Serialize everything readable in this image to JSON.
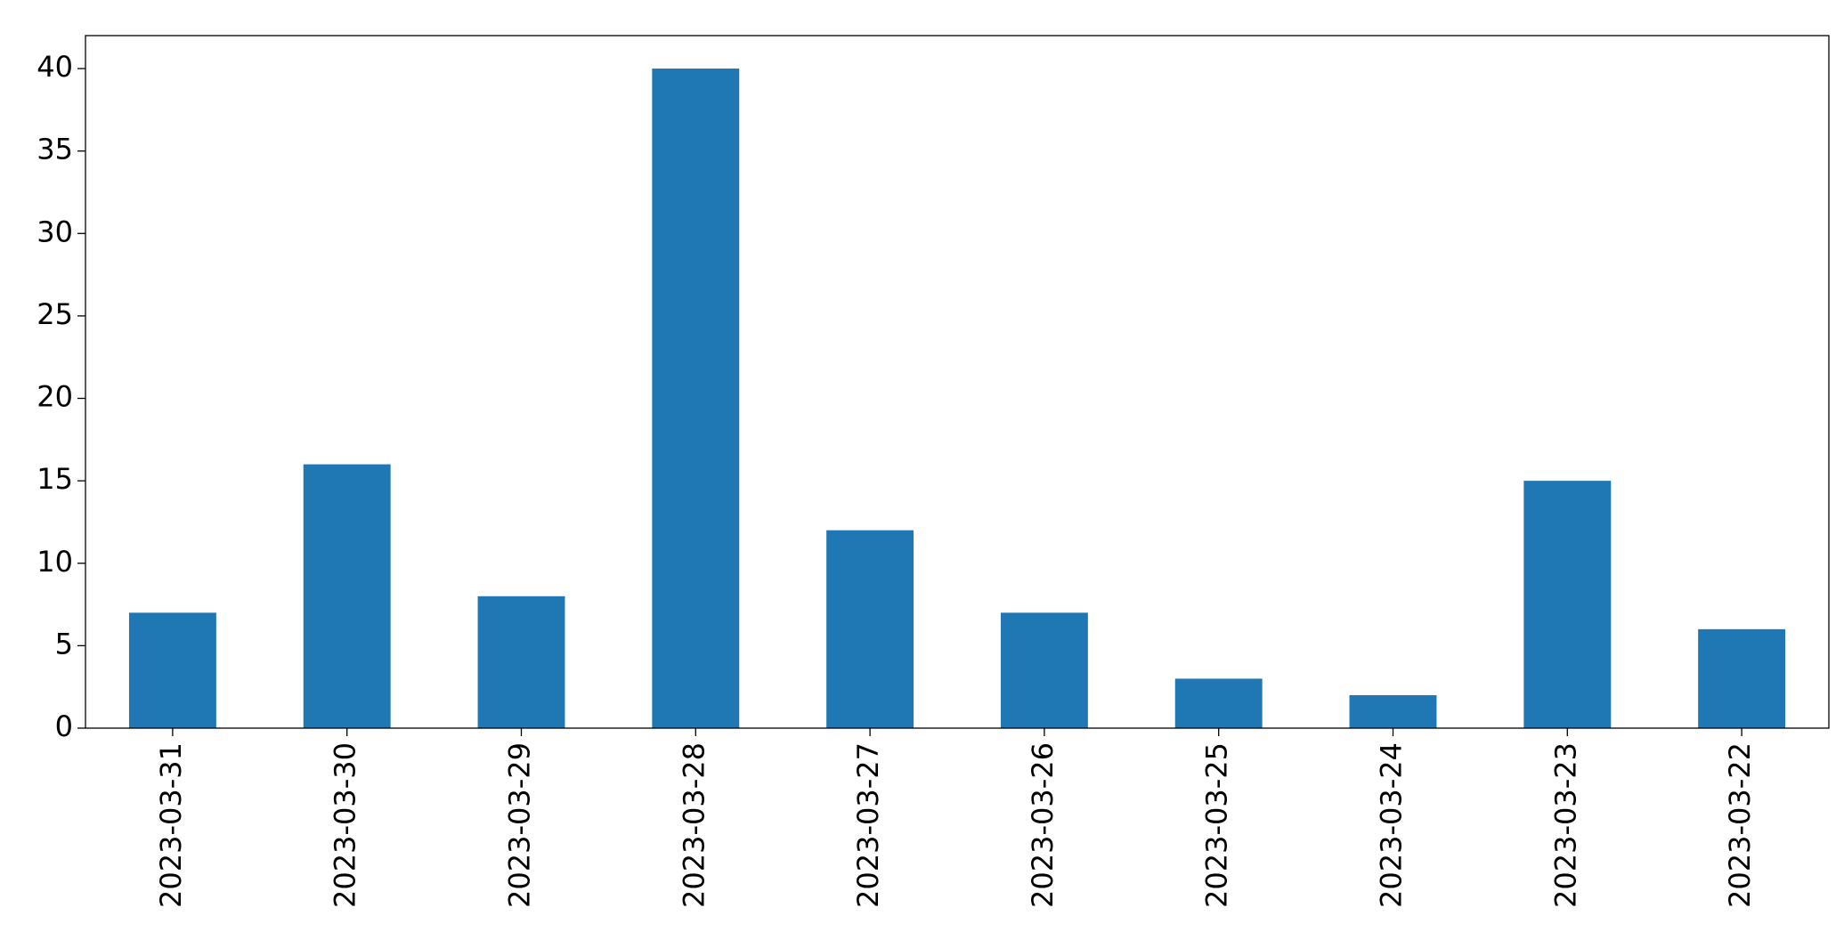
{
  "chart_data": {
    "type": "bar",
    "categories": [
      "2023-03-31",
      "2023-03-30",
      "2023-03-29",
      "2023-03-28",
      "2023-03-27",
      "2023-03-26",
      "2023-03-25",
      "2023-03-24",
      "2023-03-23",
      "2023-03-22"
    ],
    "values": [
      7,
      16,
      8,
      40,
      12,
      7,
      3,
      2,
      15,
      6
    ],
    "color": "#1f77b4",
    "ylim": [
      0,
      42
    ],
    "yticks": [
      0,
      5,
      10,
      15,
      20,
      25,
      30,
      35,
      40
    ],
    "grid": false
  }
}
